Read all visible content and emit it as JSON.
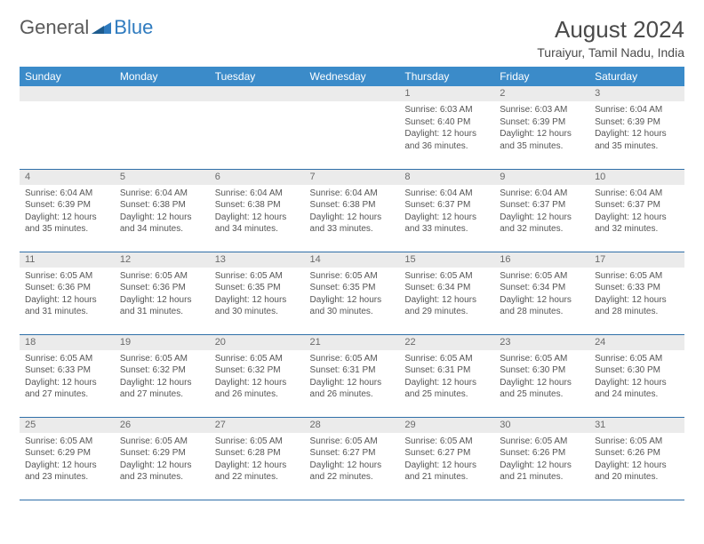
{
  "brand": {
    "part1": "General",
    "part2": "Blue"
  },
  "header": {
    "month_title": "August 2024",
    "location": "Turaiyur, Tamil Nadu, India"
  },
  "colors": {
    "header_bg": "#3b8bc9",
    "header_text": "#ffffff",
    "daynum_bg": "#ebebeb",
    "row_divider": "#2f6fa8",
    "brand_gray": "#5a5a5a",
    "brand_blue": "#2f7bbf"
  },
  "weekdays": [
    "Sunday",
    "Monday",
    "Tuesday",
    "Wednesday",
    "Thursday",
    "Friday",
    "Saturday"
  ],
  "weeks": [
    [
      {
        "day": "",
        "sunrise": "",
        "sunset": "",
        "daylight": ""
      },
      {
        "day": "",
        "sunrise": "",
        "sunset": "",
        "daylight": ""
      },
      {
        "day": "",
        "sunrise": "",
        "sunset": "",
        "daylight": ""
      },
      {
        "day": "",
        "sunrise": "",
        "sunset": "",
        "daylight": ""
      },
      {
        "day": "1",
        "sunrise": "Sunrise: 6:03 AM",
        "sunset": "Sunset: 6:40 PM",
        "daylight": "Daylight: 12 hours and 36 minutes."
      },
      {
        "day": "2",
        "sunrise": "Sunrise: 6:03 AM",
        "sunset": "Sunset: 6:39 PM",
        "daylight": "Daylight: 12 hours and 35 minutes."
      },
      {
        "day": "3",
        "sunrise": "Sunrise: 6:04 AM",
        "sunset": "Sunset: 6:39 PM",
        "daylight": "Daylight: 12 hours and 35 minutes."
      }
    ],
    [
      {
        "day": "4",
        "sunrise": "Sunrise: 6:04 AM",
        "sunset": "Sunset: 6:39 PM",
        "daylight": "Daylight: 12 hours and 35 minutes."
      },
      {
        "day": "5",
        "sunrise": "Sunrise: 6:04 AM",
        "sunset": "Sunset: 6:38 PM",
        "daylight": "Daylight: 12 hours and 34 minutes."
      },
      {
        "day": "6",
        "sunrise": "Sunrise: 6:04 AM",
        "sunset": "Sunset: 6:38 PM",
        "daylight": "Daylight: 12 hours and 34 minutes."
      },
      {
        "day": "7",
        "sunrise": "Sunrise: 6:04 AM",
        "sunset": "Sunset: 6:38 PM",
        "daylight": "Daylight: 12 hours and 33 minutes."
      },
      {
        "day": "8",
        "sunrise": "Sunrise: 6:04 AM",
        "sunset": "Sunset: 6:37 PM",
        "daylight": "Daylight: 12 hours and 33 minutes."
      },
      {
        "day": "9",
        "sunrise": "Sunrise: 6:04 AM",
        "sunset": "Sunset: 6:37 PM",
        "daylight": "Daylight: 12 hours and 32 minutes."
      },
      {
        "day": "10",
        "sunrise": "Sunrise: 6:04 AM",
        "sunset": "Sunset: 6:37 PM",
        "daylight": "Daylight: 12 hours and 32 minutes."
      }
    ],
    [
      {
        "day": "11",
        "sunrise": "Sunrise: 6:05 AM",
        "sunset": "Sunset: 6:36 PM",
        "daylight": "Daylight: 12 hours and 31 minutes."
      },
      {
        "day": "12",
        "sunrise": "Sunrise: 6:05 AM",
        "sunset": "Sunset: 6:36 PM",
        "daylight": "Daylight: 12 hours and 31 minutes."
      },
      {
        "day": "13",
        "sunrise": "Sunrise: 6:05 AM",
        "sunset": "Sunset: 6:35 PM",
        "daylight": "Daylight: 12 hours and 30 minutes."
      },
      {
        "day": "14",
        "sunrise": "Sunrise: 6:05 AM",
        "sunset": "Sunset: 6:35 PM",
        "daylight": "Daylight: 12 hours and 30 minutes."
      },
      {
        "day": "15",
        "sunrise": "Sunrise: 6:05 AM",
        "sunset": "Sunset: 6:34 PM",
        "daylight": "Daylight: 12 hours and 29 minutes."
      },
      {
        "day": "16",
        "sunrise": "Sunrise: 6:05 AM",
        "sunset": "Sunset: 6:34 PM",
        "daylight": "Daylight: 12 hours and 28 minutes."
      },
      {
        "day": "17",
        "sunrise": "Sunrise: 6:05 AM",
        "sunset": "Sunset: 6:33 PM",
        "daylight": "Daylight: 12 hours and 28 minutes."
      }
    ],
    [
      {
        "day": "18",
        "sunrise": "Sunrise: 6:05 AM",
        "sunset": "Sunset: 6:33 PM",
        "daylight": "Daylight: 12 hours and 27 minutes."
      },
      {
        "day": "19",
        "sunrise": "Sunrise: 6:05 AM",
        "sunset": "Sunset: 6:32 PM",
        "daylight": "Daylight: 12 hours and 27 minutes."
      },
      {
        "day": "20",
        "sunrise": "Sunrise: 6:05 AM",
        "sunset": "Sunset: 6:32 PM",
        "daylight": "Daylight: 12 hours and 26 minutes."
      },
      {
        "day": "21",
        "sunrise": "Sunrise: 6:05 AM",
        "sunset": "Sunset: 6:31 PM",
        "daylight": "Daylight: 12 hours and 26 minutes."
      },
      {
        "day": "22",
        "sunrise": "Sunrise: 6:05 AM",
        "sunset": "Sunset: 6:31 PM",
        "daylight": "Daylight: 12 hours and 25 minutes."
      },
      {
        "day": "23",
        "sunrise": "Sunrise: 6:05 AM",
        "sunset": "Sunset: 6:30 PM",
        "daylight": "Daylight: 12 hours and 25 minutes."
      },
      {
        "day": "24",
        "sunrise": "Sunrise: 6:05 AM",
        "sunset": "Sunset: 6:30 PM",
        "daylight": "Daylight: 12 hours and 24 minutes."
      }
    ],
    [
      {
        "day": "25",
        "sunrise": "Sunrise: 6:05 AM",
        "sunset": "Sunset: 6:29 PM",
        "daylight": "Daylight: 12 hours and 23 minutes."
      },
      {
        "day": "26",
        "sunrise": "Sunrise: 6:05 AM",
        "sunset": "Sunset: 6:29 PM",
        "daylight": "Daylight: 12 hours and 23 minutes."
      },
      {
        "day": "27",
        "sunrise": "Sunrise: 6:05 AM",
        "sunset": "Sunset: 6:28 PM",
        "daylight": "Daylight: 12 hours and 22 minutes."
      },
      {
        "day": "28",
        "sunrise": "Sunrise: 6:05 AM",
        "sunset": "Sunset: 6:27 PM",
        "daylight": "Daylight: 12 hours and 22 minutes."
      },
      {
        "day": "29",
        "sunrise": "Sunrise: 6:05 AM",
        "sunset": "Sunset: 6:27 PM",
        "daylight": "Daylight: 12 hours and 21 minutes."
      },
      {
        "day": "30",
        "sunrise": "Sunrise: 6:05 AM",
        "sunset": "Sunset: 6:26 PM",
        "daylight": "Daylight: 12 hours and 21 minutes."
      },
      {
        "day": "31",
        "sunrise": "Sunrise: 6:05 AM",
        "sunset": "Sunset: 6:26 PM",
        "daylight": "Daylight: 12 hours and 20 minutes."
      }
    ]
  ]
}
